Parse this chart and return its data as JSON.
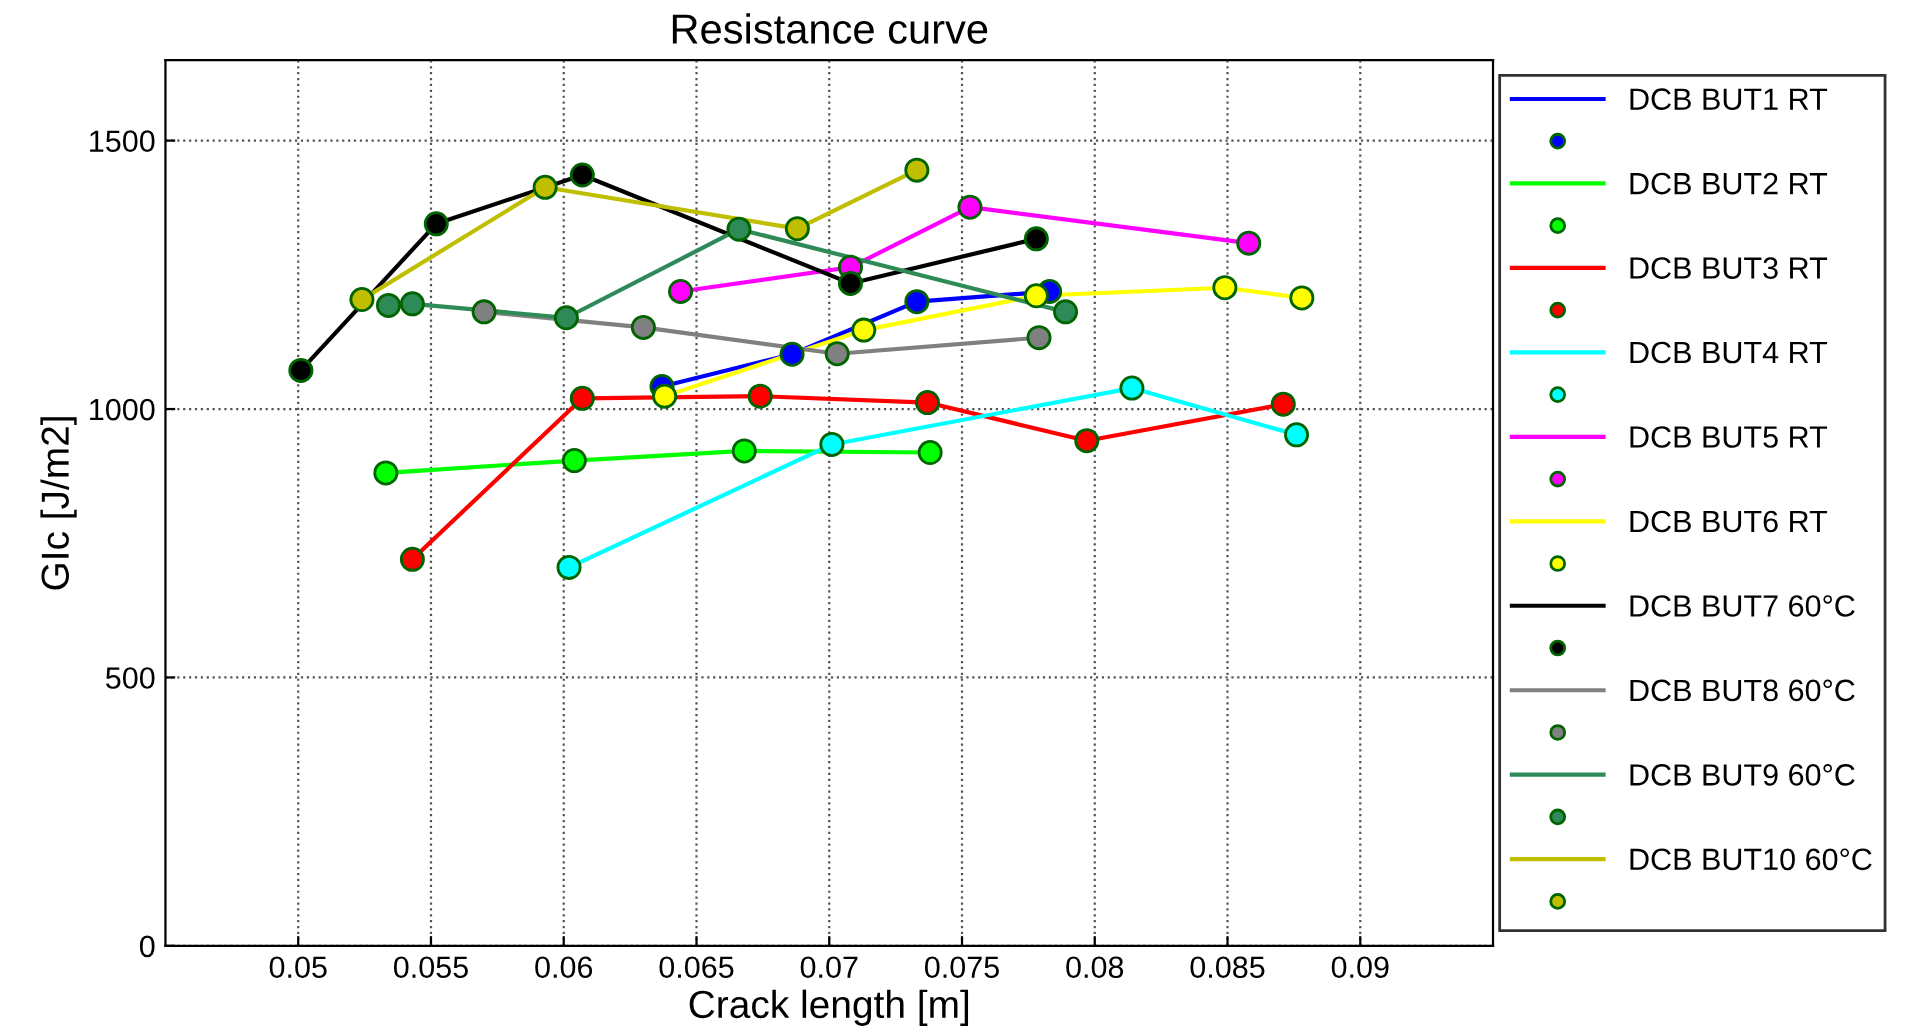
{
  "chart_data": {
    "type": "line",
    "title": "Resistance curve",
    "xlabel": "Crack length [m]",
    "ylabel": "GIc [J/m2]",
    "xlim": [
      0.045,
      0.095
    ],
    "ylim": [
      0,
      1650
    ],
    "xticks": [
      0.05,
      0.055,
      0.06,
      0.065,
      0.07,
      0.075,
      0.08,
      0.085,
      0.09
    ],
    "yticks": [
      0,
      500,
      1000,
      1500
    ],
    "grid": true,
    "legend": "right",
    "marker": "circle",
    "line_style": "solid",
    "series": [
      {
        "name": "DCB BUT1 RT",
        "color": "#0000ff",
        "x": [
          0.0637,
          0.0686,
          0.0733,
          0.0783
        ],
        "values": [
          1042,
          1102,
          1200,
          1219
        ]
      },
      {
        "name": "DCB BUT2 RT",
        "color": "#00ff00",
        "x": [
          0.0533,
          0.0604,
          0.0668,
          0.0738
        ],
        "values": [
          881,
          904,
          922,
          919
        ]
      },
      {
        "name": "DCB BUT3 RT",
        "color": "#ff0000",
        "x": [
          0.0543,
          0.0607,
          0.0674,
          0.0737,
          0.0797,
          0.0871
        ],
        "values": [
          720,
          1020,
          1024,
          1012,
          941,
          1009
        ]
      },
      {
        "name": "DCB BUT4 RT",
        "color": "#00ffff",
        "x": [
          0.0602,
          0.0701,
          0.0814,
          0.0876
        ],
        "values": [
          705,
          934,
          1039,
          952
        ]
      },
      {
        "name": "DCB BUT5 RT",
        "color": "#ff00ff",
        "x": [
          0.0644,
          0.0708,
          0.0753,
          0.0858
        ],
        "values": [
          1219,
          1264,
          1376,
          1309
        ]
      },
      {
        "name": "DCB BUT6 RT",
        "color": "#ffff00",
        "x": [
          0.0638,
          0.0713,
          0.0778,
          0.0849,
          0.0878
        ],
        "values": [
          1024,
          1147,
          1211,
          1226,
          1207
        ]
      },
      {
        "name": "DCB BUT7 60°C",
        "color": "#000000",
        "x": [
          0.0501,
          0.0552,
          0.0607,
          0.0708,
          0.0778
        ],
        "values": [
          1072,
          1345,
          1436,
          1234,
          1317
        ]
      },
      {
        "name": "DCB BUT8 60°C",
        "color": "#808080",
        "x": [
          0.057,
          0.063,
          0.0703,
          0.0779
        ],
        "values": [
          1181,
          1152,
          1103,
          1133
        ]
      },
      {
        "name": "DCB BUT9 60°C",
        "color": "#2e8b57",
        "x": [
          0.0534,
          0.0543,
          0.0601,
          0.0666,
          0.0789
        ],
        "values": [
          1193,
          1196,
          1170,
          1335,
          1181
        ]
      },
      {
        "name": "DCB BUT10 60°C",
        "color": "#bfbf00",
        "x": [
          0.0524,
          0.0593,
          0.0688,
          0.0733
        ],
        "values": [
          1204,
          1413,
          1336,
          1445
        ]
      }
    ]
  }
}
